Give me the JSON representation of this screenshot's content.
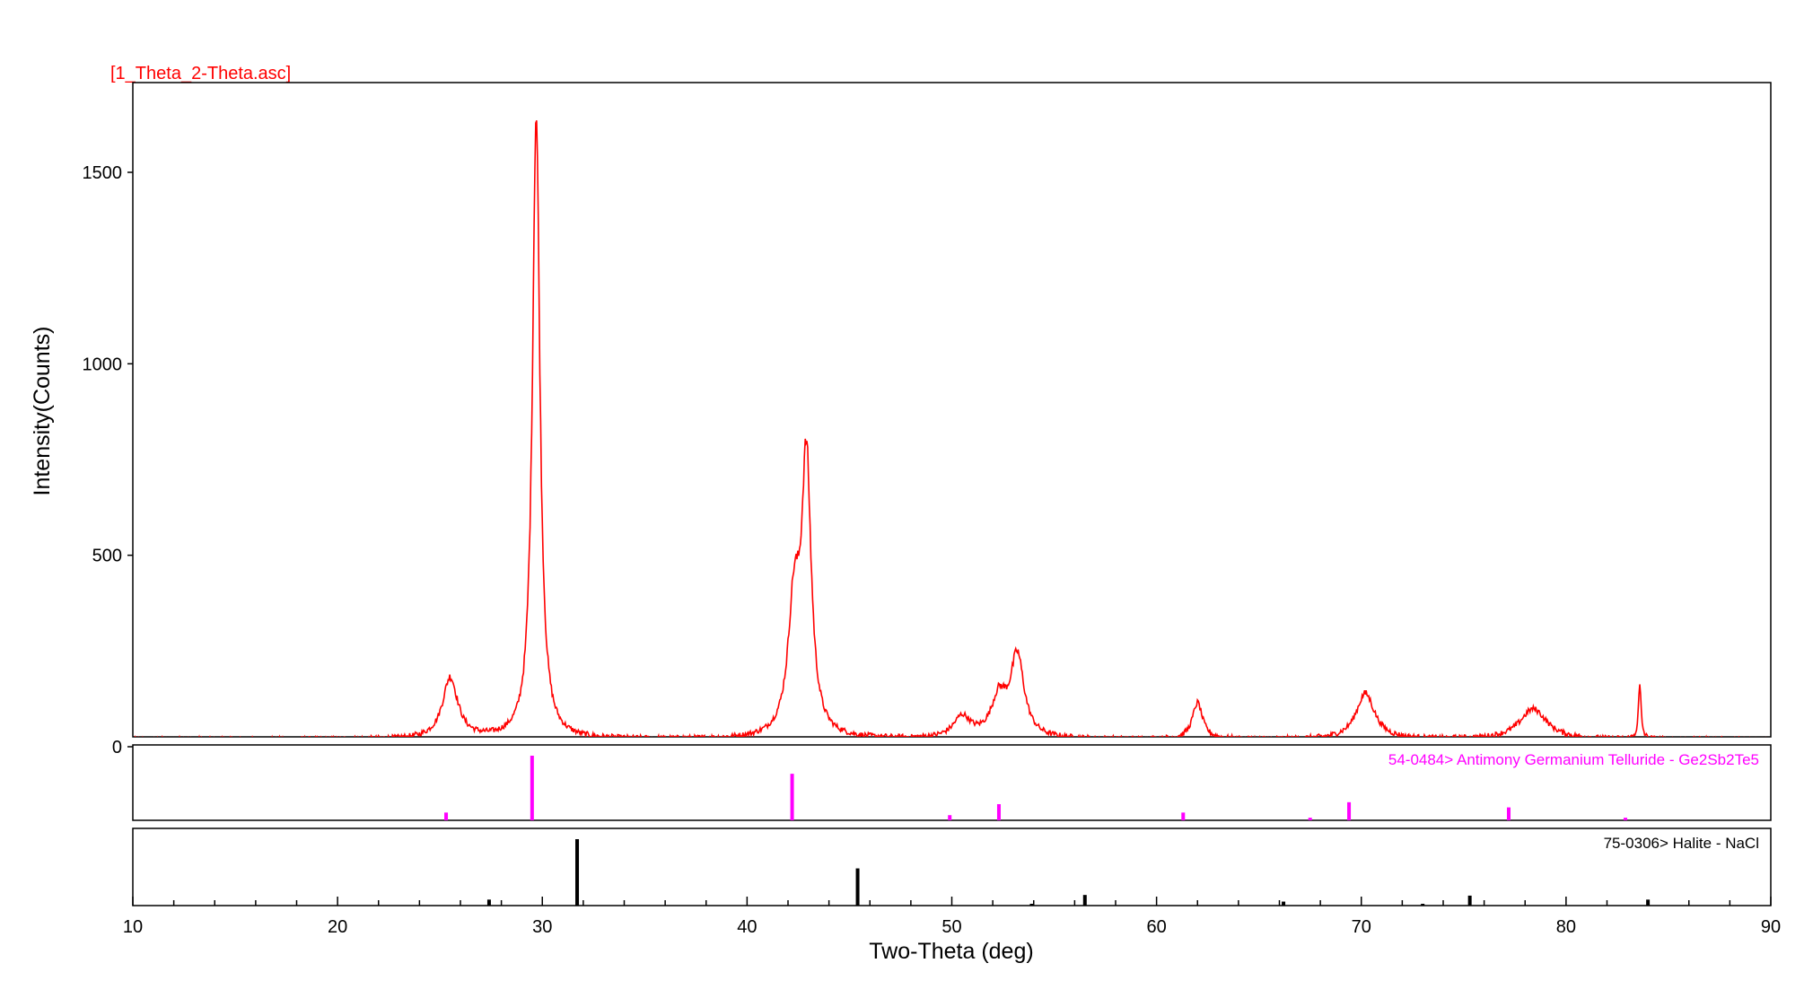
{
  "chart_data": {
    "type": "line",
    "title": "[1_Theta_2-Theta.asc]",
    "xlabel": "Two-Theta (deg)",
    "ylabel": "Intensity(Counts)",
    "xlim": [
      10,
      90
    ],
    "ylim": [
      0,
      1700
    ],
    "x_ticks": [
      10,
      20,
      30,
      40,
      50,
      60,
      70,
      80,
      90
    ],
    "y_ticks": [
      0,
      500,
      1000,
      1500
    ],
    "grid": false,
    "colors": {
      "pattern": "#ff0000",
      "ref1": "#ff00ff",
      "ref2": "#000000",
      "frame": "#000000"
    },
    "series": [
      {
        "baseline": 18,
        "peaks": [
          {
            "x": 25.5,
            "y": 160,
            "w": 0.45
          },
          {
            "x": 29.7,
            "y": 1630,
            "w": 0.22
          },
          {
            "x": 42.3,
            "y": 330,
            "w": 0.35
          },
          {
            "x": 42.9,
            "y": 700,
            "w": 0.28
          },
          {
            "x": 50.5,
            "y": 55,
            "w": 0.5
          },
          {
            "x": 52.3,
            "y": 100,
            "w": 0.45
          },
          {
            "x": 53.2,
            "y": 210,
            "w": 0.4
          },
          {
            "x": 62.0,
            "y": 95,
            "w": 0.3
          },
          {
            "x": 70.2,
            "y": 120,
            "w": 0.55
          },
          {
            "x": 78.4,
            "y": 80,
            "w": 0.8
          },
          {
            "x": 83.6,
            "y": 140,
            "w": 0.08
          }
        ]
      }
    ],
    "references": [
      {
        "name": "54-0484> Antimony Germanium Telluride - Ge2Sb2Te5",
        "lines": [
          {
            "x": 25.3,
            "y": 0.12
          },
          {
            "x": 29.5,
            "y": 1.0
          },
          {
            "x": 42.2,
            "y": 0.72
          },
          {
            "x": 49.9,
            "y": 0.08
          },
          {
            "x": 52.3,
            "y": 0.25
          },
          {
            "x": 61.3,
            "y": 0.12
          },
          {
            "x": 67.5,
            "y": 0.04
          },
          {
            "x": 69.4,
            "y": 0.28
          },
          {
            "x": 77.2,
            "y": 0.2
          },
          {
            "x": 82.9,
            "y": 0.04
          }
        ]
      },
      {
        "name": "75-0306> Halite - NaCl",
        "lines": [
          {
            "x": 27.4,
            "y": 0.09
          },
          {
            "x": 31.7,
            "y": 1.0
          },
          {
            "x": 45.4,
            "y": 0.56
          },
          {
            "x": 53.9,
            "y": 0.02
          },
          {
            "x": 56.5,
            "y": 0.16
          },
          {
            "x": 66.2,
            "y": 0.06
          },
          {
            "x": 73.0,
            "y": 0.02
          },
          {
            "x": 75.3,
            "y": 0.15
          },
          {
            "x": 84.0,
            "y": 0.09
          }
        ]
      }
    ]
  }
}
